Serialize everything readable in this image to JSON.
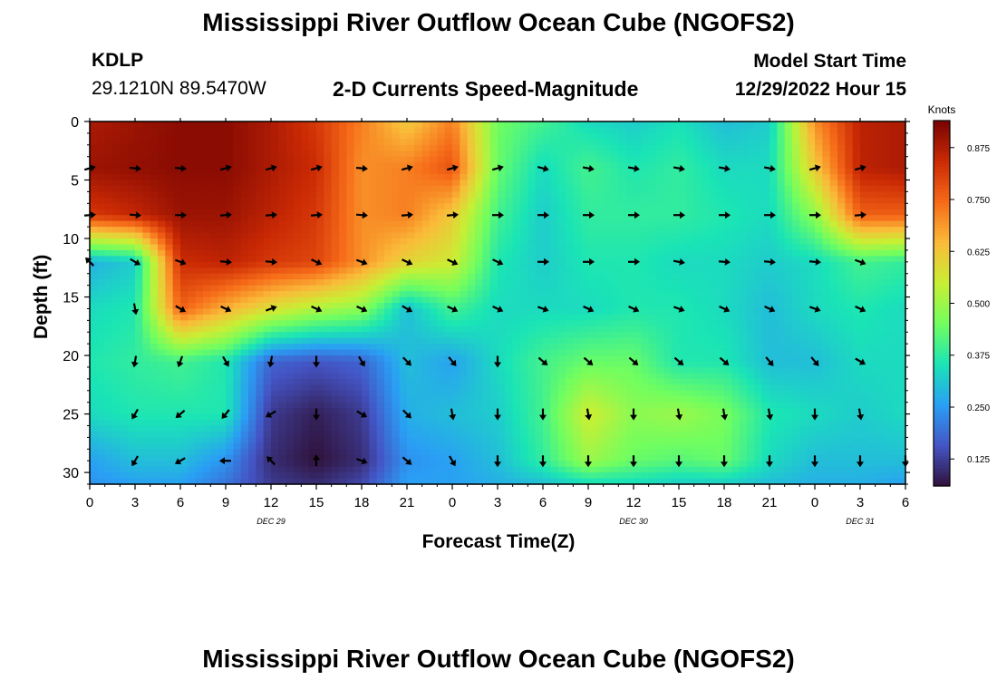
{
  "page": {
    "title": "Mississippi River Outflow Ocean Cube (NGOFS2)",
    "title_repeat": "Mississippi River Outflow Ocean Cube (NGOFS2)",
    "station_id": "KDLP",
    "station_coords": "29.1210N  89.5470W",
    "subtitle": "2-D Currents Speed-Magnitude",
    "model_start_label": "Model Start Time",
    "model_start_value": "12/29/2022 Hour 15",
    "xlabel": "Forecast Time(Z)",
    "ylabel": "Depth (ft)"
  },
  "chart_data": {
    "type": "heatmap",
    "title": "2-D Currents Speed-Magnitude",
    "xlabel": "Forecast Time(Z)",
    "ylabel": "Depth (ft)",
    "x_ticks": [
      "0",
      "3",
      "6",
      "9",
      "12",
      "15",
      "18",
      "21",
      "0",
      "3",
      "6",
      "9",
      "12",
      "15",
      "18",
      "21",
      "0",
      "3",
      "6"
    ],
    "x_hours": [
      0,
      3,
      6,
      9,
      12,
      15,
      18,
      21,
      24,
      27,
      30,
      33,
      36,
      39,
      42,
      45,
      48,
      51,
      54
    ],
    "xlim": [
      0,
      54
    ],
    "date_labels": [
      {
        "text": "DEC 29",
        "hour": 12
      },
      {
        "text": "DEC 30",
        "hour": 36
      },
      {
        "text": "DEC 31",
        "hour": 51
      }
    ],
    "y_ticks": [
      0,
      5,
      10,
      15,
      20,
      25,
      30
    ],
    "ylim": [
      31,
      0
    ],
    "colorbar": {
      "label": "Knots",
      "ticks": [
        "0.125",
        "0.250",
        "0.375",
        "0.500",
        "0.625",
        "0.750",
        "0.875"
      ],
      "tick_values": [
        0.125,
        0.25,
        0.375,
        0.5,
        0.625,
        0.75,
        0.875
      ],
      "range": [
        0.06,
        0.94
      ],
      "colormap": [
        "#30123b",
        "#4454c4",
        "#2a9ef5",
        "#1ae4b6",
        "#71fe5f",
        "#c8ef34",
        "#fabb39",
        "#f66b19",
        "#cb2a04",
        "#7a0403"
      ]
    },
    "depths_ft": [
      0,
      4,
      8,
      12,
      16,
      20.5,
      25,
      29,
      31
    ],
    "hours": [
      0,
      3,
      6,
      9,
      12,
      15,
      18,
      21,
      24,
      27,
      30,
      33,
      36,
      39,
      42,
      45,
      48,
      51,
      54
    ],
    "speed_knots": [
      [
        0.88,
        0.9,
        0.92,
        0.92,
        0.88,
        0.82,
        0.72,
        0.62,
        0.72,
        0.45,
        0.4,
        0.34,
        0.32,
        0.35,
        0.3,
        0.32,
        0.7,
        0.86,
        0.88
      ],
      [
        0.9,
        0.91,
        0.92,
        0.92,
        0.88,
        0.84,
        0.7,
        0.72,
        0.78,
        0.44,
        0.34,
        0.4,
        0.36,
        0.38,
        0.34,
        0.34,
        0.62,
        0.86,
        0.88
      ],
      [
        0.82,
        0.85,
        0.9,
        0.9,
        0.86,
        0.82,
        0.7,
        0.72,
        0.62,
        0.4,
        0.32,
        0.38,
        0.38,
        0.38,
        0.36,
        0.34,
        0.48,
        0.76,
        0.76
      ],
      [
        0.28,
        0.32,
        0.84,
        0.86,
        0.82,
        0.8,
        0.7,
        0.6,
        0.56,
        0.36,
        0.32,
        0.36,
        0.36,
        0.34,
        0.34,
        0.32,
        0.34,
        0.4,
        0.38
      ],
      [
        0.34,
        0.36,
        0.76,
        0.66,
        0.58,
        0.52,
        0.48,
        0.3,
        0.4,
        0.34,
        0.34,
        0.34,
        0.36,
        0.36,
        0.34,
        0.3,
        0.34,
        0.36,
        0.34
      ],
      [
        0.36,
        0.38,
        0.4,
        0.36,
        0.18,
        0.16,
        0.18,
        0.3,
        0.26,
        0.34,
        0.4,
        0.44,
        0.44,
        0.36,
        0.36,
        0.3,
        0.3,
        0.34,
        0.34
      ],
      [
        0.34,
        0.36,
        0.36,
        0.36,
        0.12,
        0.08,
        0.12,
        0.28,
        0.3,
        0.32,
        0.4,
        0.56,
        0.48,
        0.5,
        0.46,
        0.36,
        0.34,
        0.32,
        0.34
      ],
      [
        0.26,
        0.3,
        0.3,
        0.24,
        0.1,
        0.06,
        0.1,
        0.24,
        0.26,
        0.3,
        0.38,
        0.5,
        0.44,
        0.42,
        0.44,
        0.34,
        0.3,
        0.3,
        0.3
      ],
      [
        0.24,
        0.26,
        0.26,
        0.2,
        0.12,
        0.1,
        0.14,
        0.26,
        0.26,
        0.28,
        0.3,
        0.34,
        0.34,
        0.32,
        0.32,
        0.3,
        0.28,
        0.28,
        0.26
      ]
    ],
    "vector_depths_ft": [
      4,
      8,
      12,
      16,
      20.5,
      25,
      29
    ],
    "vector_hours": [
      0,
      3,
      6,
      9,
      12,
      15,
      18,
      21,
      24,
      27,
      30,
      33,
      36,
      39,
      42,
      45,
      48,
      51,
      54
    ],
    "vector_direction_deg": [
      [
        -15,
        5,
        5,
        -15,
        -15,
        -15,
        5,
        -15,
        -15,
        -15,
        15,
        10,
        10,
        10,
        10,
        10,
        -15,
        -15,
        null
      ],
      [
        -5,
        5,
        0,
        -5,
        -5,
        -5,
        5,
        -5,
        -5,
        0,
        0,
        0,
        0,
        0,
        0,
        0,
        0,
        -5,
        null
      ],
      [
        -135,
        30,
        20,
        5,
        5,
        25,
        20,
        25,
        25,
        25,
        0,
        0,
        0,
        10,
        5,
        5,
        5,
        20,
        null
      ],
      [
        null,
        80,
        30,
        25,
        -20,
        25,
        25,
        30,
        25,
        25,
        20,
        25,
        25,
        20,
        25,
        25,
        20,
        25,
        null
      ],
      [
        null,
        100,
        110,
        60,
        100,
        90,
        60,
        45,
        50,
        90,
        40,
        40,
        40,
        40,
        40,
        50,
        50,
        30,
        null
      ],
      [
        null,
        120,
        140,
        130,
        150,
        90,
        30,
        45,
        80,
        90,
        90,
        80,
        90,
        80,
        80,
        80,
        90,
        80,
        null
      ],
      [
        null,
        120,
        150,
        180,
        -135,
        -90,
        20,
        40,
        60,
        90,
        90,
        90,
        90,
        90,
        90,
        90,
        90,
        90,
        90
      ]
    ]
  }
}
